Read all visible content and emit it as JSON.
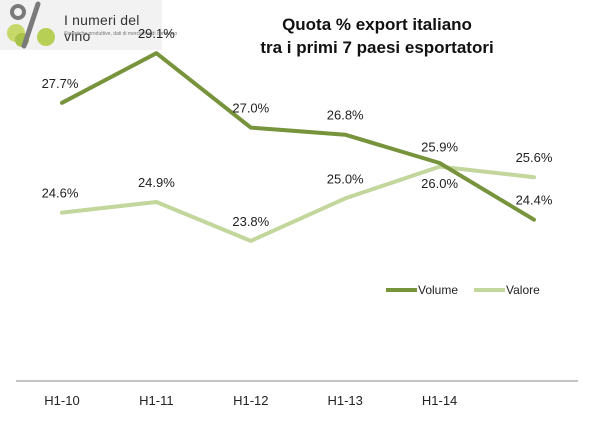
{
  "logo": {
    "name": "I numeri del vino",
    "tagline": "Statistiche produttive, dati di mercato e di consumo",
    "icon": "percent-glass-and-grapes-icon"
  },
  "chart_data": {
    "type": "line",
    "title": [
      "Quota % export italiano",
      "tra i primi 7 paesi esportatori"
    ],
    "categories": [
      "H1-10",
      "H1-11",
      "H1-12",
      "H1-13",
      "H1-14",
      ""
    ],
    "series": [
      {
        "name": "Volume",
        "color": "#77933c",
        "values": [
          27.7,
          29.1,
          27.0,
          26.8,
          26.0,
          24.4
        ],
        "labels": [
          "27.7%",
          "29.1%",
          "27.0%",
          "26.8%",
          "26.0%",
          "24.4%"
        ]
      },
      {
        "name": "Valore",
        "color": "#c3d69b",
        "values": [
          24.6,
          24.9,
          23.8,
          25.0,
          25.9,
          25.6
        ],
        "labels": [
          "24.6%",
          "24.9%",
          "23.8%",
          "25.0%",
          "25.9%",
          "25.6%"
        ]
      }
    ],
    "xlabel": "",
    "ylabel": "",
    "ylim": [
      18.8,
      29.7
    ],
    "grid": false,
    "legend": "right-middle"
  }
}
